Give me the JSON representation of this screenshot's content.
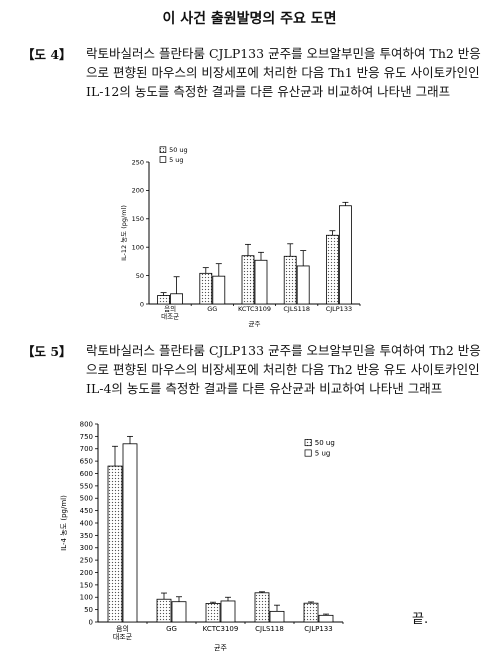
{
  "page": {
    "title": "이 사건 출원발명의 주요 도면",
    "end_mark": "끝."
  },
  "figures": [
    {
      "label": "【도 4】",
      "description": "락토바실러스 플란타룸 CJLP133 균주를 오브알부민을 투여하여 Th2 반응으로 편향된 마우스의 비장세포에 처리한 다음 Th1 반응 유도 사이토카인인 IL-12의 농도를 측정한 결과를 다른 유산균과 비교하여 나타낸 그래프"
    },
    {
      "label": "【도 5】",
      "description": "락토바실러스 플란타룸 CJLP133 균주를 오브알부민을 투여하여 Th2 반응으로 편향된 마우스의 비장세포에 처리한 다음 Th2 반응 유도 사이토카인인 IL-4의 농도를 측정한 결과를 다른 유산균과 비교하여 나타낸 그래프"
    }
  ],
  "chart_data": [
    {
      "type": "bar",
      "categories": [
        "음의\n대조군",
        "GG",
        "KCTC3109",
        "CJLS118",
        "CJLP133"
      ],
      "series": [
        {
          "name": "50 ug",
          "values": [
            15,
            54,
            85,
            84,
            121
          ],
          "errors": [
            5,
            10,
            20,
            22,
            8
          ],
          "fill": "dotted"
        },
        {
          "name": "5 ug",
          "values": [
            18,
            49,
            77,
            67,
            173
          ],
          "errors": [
            30,
            22,
            14,
            27,
            6
          ],
          "fill": "white"
        }
      ],
      "xlabel": "균주",
      "ylabel": "IL-12 농도 (pg/ml)",
      "ylim": [
        0,
        250
      ],
      "yticks": [
        0,
        50,
        100,
        150,
        200,
        250
      ],
      "legend": "top-left",
      "grid": false
    },
    {
      "type": "bar",
      "categories": [
        "음의\n대조군",
        "GG",
        "KCTC3109",
        "CJLS118",
        "CJLP133"
      ],
      "series": [
        {
          "name": "50 ug",
          "values": [
            630,
            92,
            75,
            118,
            76
          ],
          "errors": [
            80,
            25,
            5,
            4,
            5
          ],
          "fill": "dotted"
        },
        {
          "name": "5 ug",
          "values": [
            720,
            82,
            85,
            43,
            27
          ],
          "errors": [
            30,
            20,
            15,
            25,
            5
          ],
          "fill": "white"
        }
      ],
      "xlabel": "균주",
      "ylabel": "IL-4 농도 (pg/ml)",
      "ylim": [
        0,
        800
      ],
      "yticks": [
        0,
        50,
        100,
        150,
        200,
        250,
        300,
        350,
        400,
        450,
        500,
        550,
        600,
        650,
        700,
        750,
        800
      ],
      "legend": "top-right",
      "grid": false
    }
  ]
}
